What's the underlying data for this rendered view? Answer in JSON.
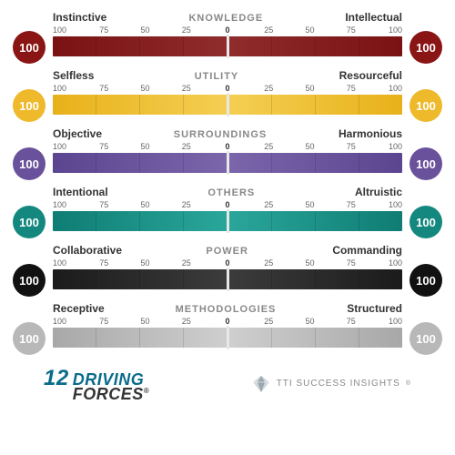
{
  "scale": {
    "ticks": [
      100,
      75,
      50,
      25,
      0,
      25,
      50,
      75,
      100
    ]
  },
  "rows": [
    {
      "category": "KNOWLEDGE",
      "leftLabel": "Instinctive",
      "rightLabel": "Intellectual",
      "leftValue": "100",
      "rightValue": "100",
      "circleColor": "#8a1515",
      "circleText": "#ffffff",
      "gradient": {
        "left": "#7a1212",
        "mid": "#8f2c2c",
        "right": "#7a1212"
      }
    },
    {
      "category": "UTILITY",
      "leftLabel": "Selfless",
      "rightLabel": "Resourceful",
      "leftValue": "100",
      "rightValue": "100",
      "circleColor": "#eeb92b",
      "circleText": "#ffffff",
      "gradient": {
        "left": "#e8b11a",
        "mid": "#f4cf53",
        "right": "#e8b11a"
      }
    },
    {
      "category": "SURROUNDINGS",
      "leftLabel": "Objective",
      "rightLabel": "Harmonious",
      "leftValue": "100",
      "rightValue": "100",
      "circleColor": "#6a519b",
      "circleText": "#ffffff",
      "gradient": {
        "left": "#5c4590",
        "mid": "#7b66ab",
        "right": "#5c4590"
      }
    },
    {
      "category": "OTHERS",
      "leftLabel": "Intentional",
      "rightLabel": "Altruistic",
      "leftValue": "100",
      "rightValue": "100",
      "circleColor": "#14887f",
      "circleText": "#ffffff",
      "gradient": {
        "left": "#0f7d74",
        "mid": "#2aa69b",
        "right": "#0f7d74"
      }
    },
    {
      "category": "POWER",
      "leftLabel": "Collaborative",
      "rightLabel": "Commanding",
      "leftValue": "100",
      "rightValue": "100",
      "circleColor": "#111111",
      "circleText": "#ffffff",
      "gradient": {
        "left": "#1b1b1b",
        "mid": "#3c3c3c",
        "right": "#1b1b1b"
      }
    },
    {
      "category": "METHODOLOGIES",
      "leftLabel": "Receptive",
      "rightLabel": "Structured",
      "leftValue": "100",
      "rightValue": "100",
      "circleColor": "#b8b8b8",
      "circleText": "#ffffff",
      "gradient": {
        "left": "#a8a8a8",
        "mid": "#cfcfcf",
        "right": "#a8a8a8"
      }
    }
  ],
  "footer": {
    "logoNumber": "12",
    "logoTop": "DRIVING",
    "logoBottom": "FORCES",
    "tti": "TTI SUCCESS INSIGHTS"
  }
}
